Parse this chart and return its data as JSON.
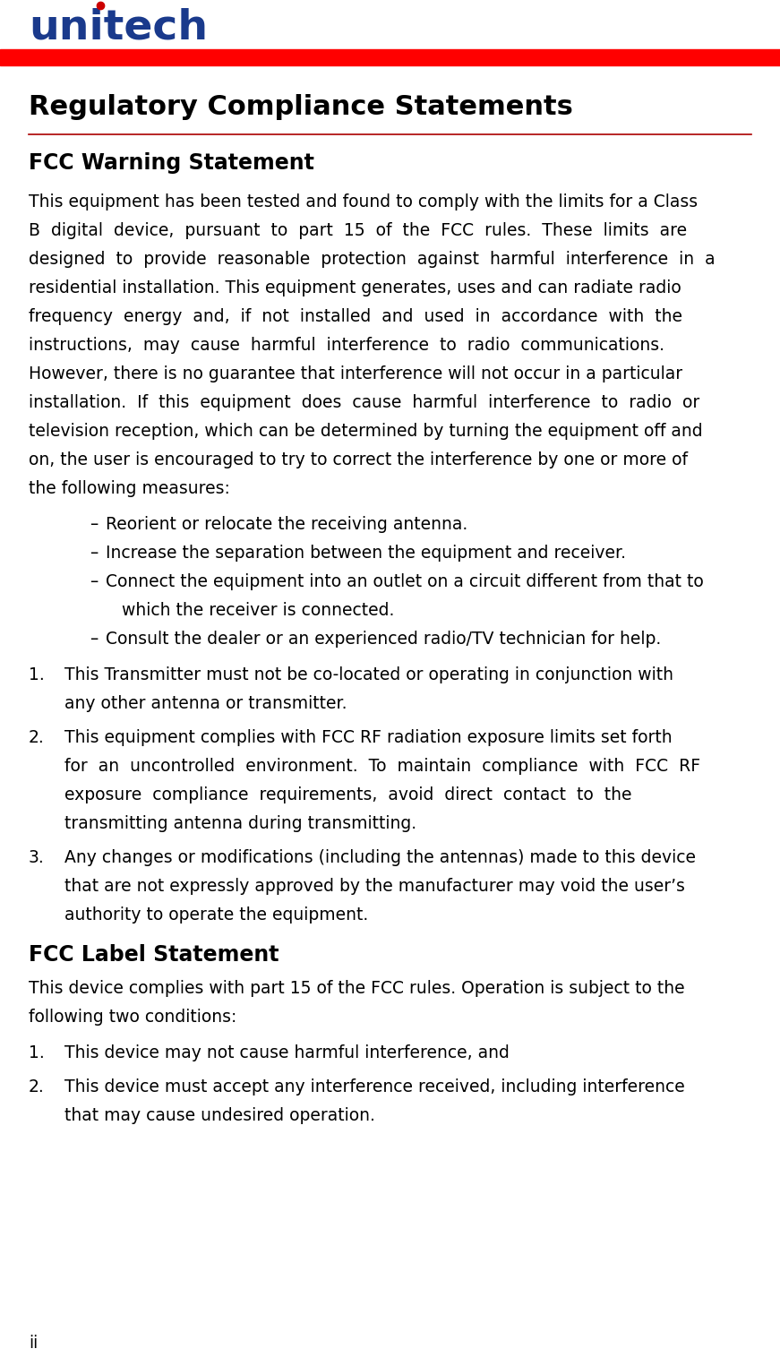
{
  "bg_color": "#ffffff",
  "logo_color": "#1a3a8c",
  "logo_dot_color": "#cc0000",
  "red_bar_color": "#ff0000",
  "red_line_color": "#aa0000",
  "logo_text": "unitech",
  "title": "Regulatory Compliance Statements",
  "s1_heading": "FCC Warning Statement",
  "s2_heading": "FCC Label Statement",
  "footer": "ii",
  "body_lines": [
    "This equipment has been tested and found to comply with the limits for a Class",
    "B  digital  device,  pursuant  to  part  15  of  the  FCC  rules.  These  limits  are",
    "designed  to  provide  reasonable  protection  against  harmful  interference  in  a",
    "residential installation. This equipment generates, uses and can radiate radio",
    "frequency  energy  and,  if  not  installed  and  used  in  accordance  with  the",
    "instructions,  may  cause  harmful  interference  to  radio  communications.",
    "However, there is no guarantee that interference will not occur in a particular",
    "installation.  If  this  equipment  does  cause  harmful  interference  to  radio  or",
    "television reception, which can be determined by turning the equipment off and",
    "on, the user is encouraged to try to correct the interference by one or more of",
    "the following measures:"
  ],
  "bullets": [
    [
      "Reorient or relocate the receiving antenna.",
      null
    ],
    [
      "Increase the separation between the equipment and receiver.",
      null
    ],
    [
      "Connect the equipment into an outlet on a circuit different from that to",
      "which the receiver is connected."
    ],
    [
      "Consult the dealer or an experienced radio/TV technician for help.",
      null
    ]
  ],
  "numbered1": [
    [
      "This Transmitter must not be co-located or operating in conjunction with",
      "any other antenna or transmitter."
    ],
    [
      "This equipment complies with FCC RF radiation exposure limits set forth",
      "for  an  uncontrolled  environment.  To  maintain  compliance  with  FCC  RF",
      "exposure  compliance  requirements,  avoid  direct  contact  to  the",
      "transmitting antenna during transmitting."
    ],
    [
      "Any changes or modifications (including the antennas) made to this device",
      "that are not expressly approved by the manufacturer may void the user’s",
      "authority to operate the equipment."
    ]
  ],
  "s2_body_lines": [
    "This device complies with part 15 of the FCC rules. Operation is subject to the",
    "following two conditions:"
  ],
  "numbered2": [
    [
      "This device may not cause harmful interference, and"
    ],
    [
      "This device must accept any interference received, including interference",
      "that may cause undesired operation."
    ]
  ]
}
